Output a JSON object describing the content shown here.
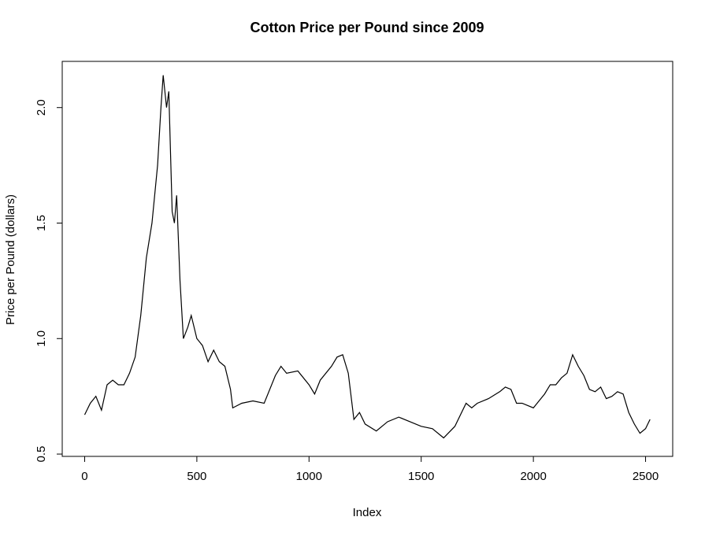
{
  "chart_data": {
    "type": "line",
    "title": "Cotton Price per Pound since 2009",
    "x_label": "Index",
    "y_label": "Price per Pound (dollars)",
    "x": [
      0,
      25,
      50,
      75,
      100,
      125,
      150,
      175,
      200,
      225,
      250,
      275,
      300,
      325,
      340,
      350,
      365,
      375,
      390,
      400,
      410,
      425,
      440,
      460,
      475,
      500,
      525,
      550,
      575,
      600,
      625,
      650,
      660,
      700,
      750,
      800,
      850,
      875,
      900,
      950,
      1000,
      1025,
      1050,
      1100,
      1125,
      1150,
      1175,
      1200,
      1225,
      1250,
      1300,
      1350,
      1400,
      1450,
      1500,
      1550,
      1600,
      1650,
      1700,
      1725,
      1750,
      1800,
      1850,
      1875,
      1900,
      1925,
      1950,
      2000,
      2050,
      2075,
      2100,
      2125,
      2150,
      2175,
      2200,
      2225,
      2250,
      2275,
      2300,
      2325,
      2350,
      2375,
      2400,
      2425,
      2450,
      2475,
      2500,
      2520
    ],
    "series": [
      {
        "name": "price",
        "color": "#000000",
        "values": [
          0.67,
          0.72,
          0.75,
          0.69,
          0.8,
          0.82,
          0.8,
          0.8,
          0.85,
          0.92,
          1.1,
          1.35,
          1.5,
          1.75,
          2.0,
          2.14,
          2.0,
          2.07,
          1.55,
          1.5,
          1.62,
          1.25,
          1.0,
          1.05,
          1.1,
          1.0,
          0.97,
          0.9,
          0.95,
          0.9,
          0.88,
          0.78,
          0.7,
          0.72,
          0.73,
          0.72,
          0.84,
          0.88,
          0.85,
          0.86,
          0.8,
          0.76,
          0.82,
          0.88,
          0.92,
          0.93,
          0.85,
          0.65,
          0.68,
          0.63,
          0.6,
          0.64,
          0.66,
          0.64,
          0.62,
          0.61,
          0.57,
          0.62,
          0.72,
          0.7,
          0.72,
          0.74,
          0.77,
          0.79,
          0.78,
          0.72,
          0.72,
          0.7,
          0.76,
          0.8,
          0.8,
          0.83,
          0.85,
          0.93,
          0.88,
          0.84,
          0.78,
          0.77,
          0.79,
          0.74,
          0.75,
          0.77,
          0.76,
          0.68,
          0.63,
          0.59,
          0.61,
          0.65
        ]
      }
    ],
    "xlim": [
      -100,
      2621
    ],
    "ylim": [
      0.49,
      2.2
    ],
    "xticks": [
      0,
      500,
      1000,
      1500,
      2000,
      2500
    ],
    "yticks": [
      0.5,
      {
        "value": 1,
        "label": "1.0"
      },
      1.5,
      {
        "value": 2,
        "label": "2.0"
      }
    ]
  }
}
